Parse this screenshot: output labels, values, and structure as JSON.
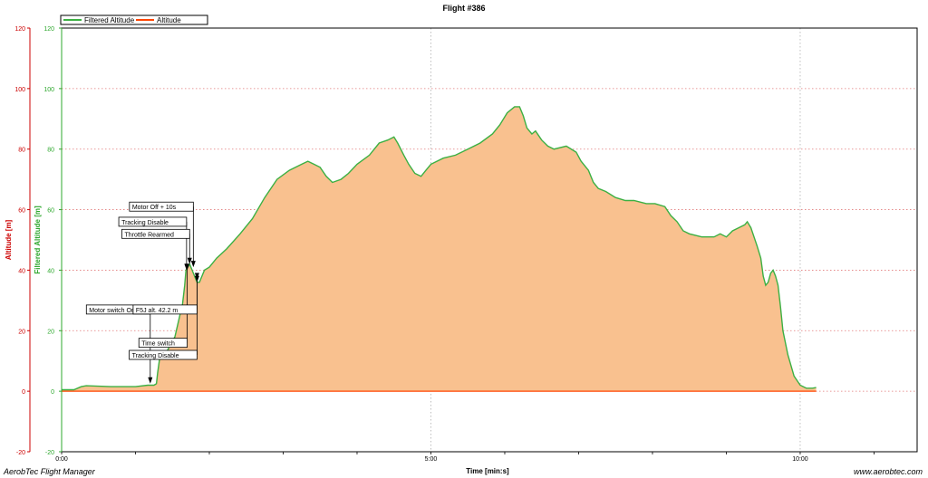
{
  "chart_data": {
    "type": "area",
    "title": "Flight #386",
    "xlabel": "Time [min:s]",
    "ylabel_left": "Altitude [m]",
    "ylabel_right": "Filtered Altitude [m]",
    "xlim": [
      0,
      695
    ],
    "ylim": [
      -20,
      120
    ],
    "x_ticks": [
      {
        "value": 0,
        "label": "0:00"
      },
      {
        "value": 300,
        "label": "5:00"
      },
      {
        "value": 600,
        "label": "10:00"
      }
    ],
    "y_ticks": [
      -20,
      0,
      20,
      40,
      60,
      80,
      100,
      120
    ],
    "grid": true,
    "legend_position": "top-left",
    "series": [
      {
        "name": "Filtered Altitude",
        "color": "#3cb043",
        "fill": "#f9c18f",
        "points": [
          [
            0,
            0.5
          ],
          [
            10,
            0.5
          ],
          [
            16,
            1.5
          ],
          [
            20,
            1.8
          ],
          [
            40,
            1.5
          ],
          [
            60,
            1.5
          ],
          [
            70,
            2
          ],
          [
            75,
            2
          ],
          [
            77,
            2.5
          ],
          [
            78,
            6
          ],
          [
            80,
            12
          ],
          [
            84,
            12
          ],
          [
            88,
            15
          ],
          [
            92,
            18
          ],
          [
            96,
            25
          ],
          [
            98,
            28
          ],
          [
            100,
            35
          ],
          [
            101,
            40
          ],
          [
            104,
            42
          ],
          [
            106,
            40
          ],
          [
            108,
            38
          ],
          [
            110,
            36
          ],
          [
            112,
            36
          ],
          [
            114,
            38
          ],
          [
            116,
            40
          ],
          [
            120,
            41
          ],
          [
            126,
            44
          ],
          [
            134,
            47
          ],
          [
            145,
            52
          ],
          [
            155,
            57
          ],
          [
            165,
            64
          ],
          [
            175,
            70
          ],
          [
            185,
            73
          ],
          [
            195,
            75
          ],
          [
            200,
            76
          ],
          [
            205,
            75
          ],
          [
            210,
            74
          ],
          [
            215,
            71
          ],
          [
            220,
            69
          ],
          [
            227,
            70
          ],
          [
            233,
            72
          ],
          [
            240,
            75
          ],
          [
            250,
            78
          ],
          [
            258,
            82
          ],
          [
            265,
            83
          ],
          [
            270,
            84
          ],
          [
            273,
            82
          ],
          [
            278,
            78
          ],
          [
            282,
            75
          ],
          [
            287,
            72
          ],
          [
            292,
            71
          ],
          [
            296,
            73
          ],
          [
            300,
            75
          ],
          [
            310,
            77
          ],
          [
            320,
            78
          ],
          [
            330,
            80
          ],
          [
            340,
            82
          ],
          [
            350,
            85
          ],
          [
            356,
            88
          ],
          [
            362,
            92
          ],
          [
            368,
            94
          ],
          [
            372,
            94
          ],
          [
            375,
            91
          ],
          [
            378,
            87
          ],
          [
            382,
            85
          ],
          [
            385,
            86
          ],
          [
            390,
            83
          ],
          [
            395,
            81
          ],
          [
            400,
            80
          ],
          [
            410,
            81
          ],
          [
            418,
            79
          ],
          [
            422,
            76
          ],
          [
            428,
            73
          ],
          [
            432,
            69
          ],
          [
            436,
            67
          ],
          [
            442,
            66
          ],
          [
            450,
            64
          ],
          [
            458,
            63
          ],
          [
            465,
            63
          ],
          [
            475,
            62
          ],
          [
            482,
            62
          ],
          [
            490,
            61
          ],
          [
            495,
            58
          ],
          [
            500,
            56
          ],
          [
            505,
            53
          ],
          [
            510,
            52
          ],
          [
            520,
            51
          ],
          [
            530,
            51
          ],
          [
            535,
            52
          ],
          [
            540,
            51
          ],
          [
            545,
            53
          ],
          [
            550,
            54
          ],
          [
            555,
            55
          ],
          [
            557,
            56
          ],
          [
            560,
            54
          ],
          [
            565,
            48
          ],
          [
            568,
            44
          ],
          [
            570,
            38
          ],
          [
            572,
            35
          ],
          [
            574,
            36
          ],
          [
            576,
            39
          ],
          [
            578,
            40
          ],
          [
            580,
            38
          ],
          [
            582,
            35
          ],
          [
            584,
            28
          ],
          [
            586,
            20
          ],
          [
            590,
            12
          ],
          [
            595,
            5
          ],
          [
            600,
            2
          ],
          [
            605,
            1
          ],
          [
            610,
            1
          ],
          [
            613,
            1.2
          ]
        ]
      },
      {
        "name": "Altitude",
        "color": "#ff4500",
        "points": [
          [
            0,
            0
          ],
          [
            613,
            0
          ]
        ]
      }
    ],
    "annotations": [
      {
        "label": "Motor switch On",
        "x": 72,
        "y": 2.5,
        "label_y": 27
      },
      {
        "label": "Tracking Disable",
        "x": 101.5,
        "y": 40,
        "label_y": 56
      },
      {
        "label": "Throttle Rearmed",
        "x": 104,
        "y": 42,
        "label_y": 52
      },
      {
        "label": "Motor Off + 10s",
        "x": 107,
        "y": 41,
        "label_y": 61
      },
      {
        "label": "Time switch",
        "x": 102,
        "y": 40,
        "label_y": 16
      },
      {
        "label": "F5J alt. 42.2 m",
        "x": 110,
        "y": 37,
        "label_y": 27
      },
      {
        "label": "Tracking Disable",
        "x": 110,
        "y": 36,
        "label_y": 12
      }
    ]
  },
  "footer": {
    "left": "AerobTec Flight Manager",
    "right": "www.aerobtec.com"
  },
  "colors": {
    "axis_red": "#cc0000",
    "axis_green": "#2ea82e",
    "grid_red": "#e27a7a",
    "grid_gray": "#b0b0b0"
  }
}
